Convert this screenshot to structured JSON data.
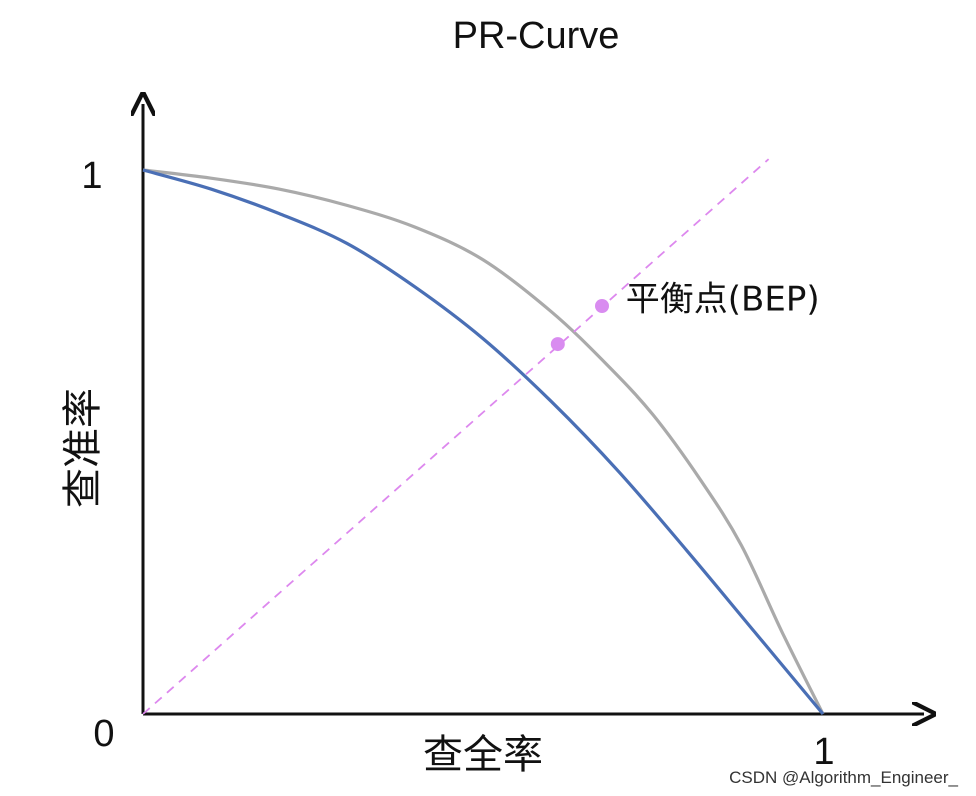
{
  "chart_data": {
    "type": "line",
    "title": "PR-Curve",
    "xlabel": "查全率",
    "ylabel": "查准率",
    "xlim": [
      0,
      1
    ],
    "ylim": [
      0,
      1
    ],
    "x_ticks": [
      "0",
      "1"
    ],
    "y_ticks": [
      "1"
    ],
    "grid": false,
    "series": [
      {
        "color": "#aaaaaa",
        "x": [
          0,
          0.1,
          0.2,
          0.3,
          0.4,
          0.5,
          0.6,
          0.68,
          0.75,
          0.82,
          0.88,
          0.94,
          1.0
        ],
        "y": [
          1.0,
          0.985,
          0.965,
          0.935,
          0.895,
          0.835,
          0.74,
          0.645,
          0.55,
          0.43,
          0.31,
          0.15,
          0.0
        ]
      },
      {
        "color": "#4a6fb5",
        "x": [
          0,
          0.1,
          0.2,
          0.3,
          0.4,
          0.5,
          0.6,
          0.7,
          0.8,
          0.9,
          1.0
        ],
        "y": [
          1.0,
          0.965,
          0.92,
          0.865,
          0.785,
          0.69,
          0.575,
          0.445,
          0.3,
          0.15,
          0.0
        ]
      },
      {
        "color": "#dd88ee",
        "style": "dashed",
        "x": [
          0,
          0.92
        ],
        "y": [
          0,
          1.02
        ]
      }
    ],
    "points": [
      {
        "x": 0.61,
        "y": 0.68,
        "color": "#d98cf0"
      },
      {
        "x": 0.675,
        "y": 0.75,
        "color": "#d98cf0"
      }
    ],
    "annotations": [
      {
        "text": "平衡点(BEP)",
        "x": 0.71,
        "y": 0.76
      }
    ]
  },
  "watermark": "CSDN @Algorithm_Engineer_"
}
